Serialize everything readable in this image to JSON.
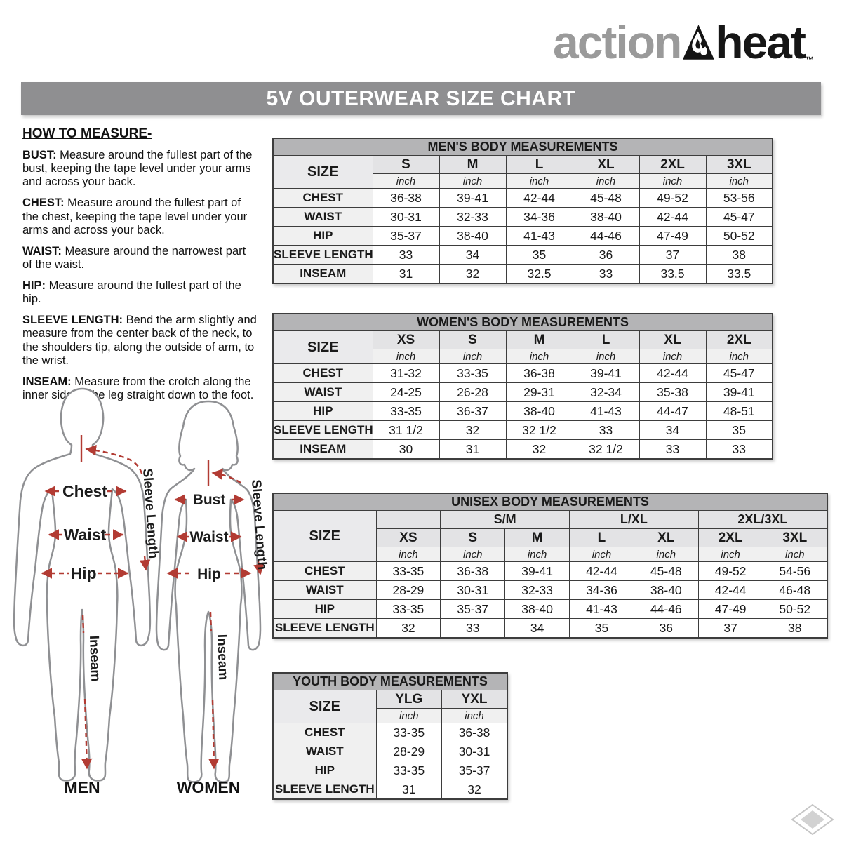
{
  "logo": {
    "word1": "action",
    "word2": "heat",
    "tm": "™"
  },
  "banner": {
    "title": "5V OUTERWEAR SIZE CHART"
  },
  "how_to_measure": {
    "heading": "HOW TO MEASURE-",
    "items": [
      {
        "term": "BUST:",
        "text": "Measure around the fullest part of the bust, keeping the tape level under your arms and across your back."
      },
      {
        "term": "CHEST:",
        "text": "Measure around the fullest part of the chest, keeping the tape level under your arms and across your back."
      },
      {
        "term": "WAIST:",
        "text": "Measure around the narrowest part of the waist."
      },
      {
        "term": "HIP:",
        "text": "Measure around the fullest part of the hip."
      },
      {
        "term": "SLEEVE LENGTH:",
        "text": "Bend the arm slightly and measure from the center back of the neck, to the shoulders tip, along the outside of arm, to the wrist."
      },
      {
        "term": "INSEAM:",
        "text": "Measure from the crotch along the inner side of the leg straight down to the foot."
      }
    ]
  },
  "diagram": {
    "arrow_color": "#b23b33",
    "outline_color": "#8f9093",
    "men": {
      "caption": "MEN",
      "chest": "Chest",
      "waist": "Waist",
      "hip": "Hip",
      "inseam": "Inseam",
      "sleeve": "Sleeve Length"
    },
    "women": {
      "caption": "WOMEN",
      "bust": "Bust",
      "waist": "Waist",
      "hip": "Hip",
      "inseam": "Inseam",
      "sleeve": "Sleeve Length"
    }
  },
  "tables": {
    "mens": {
      "title": "MEN'S BODY MEASUREMENTS",
      "size_label": "SIZE",
      "unit": "inch",
      "sizes": [
        "S",
        "M",
        "L",
        "XL",
        "2XL",
        "3XL"
      ],
      "rows": [
        {
          "label": "CHEST",
          "values": [
            "36-38",
            "39-41",
            "42-44",
            "45-48",
            "49-52",
            "53-56"
          ]
        },
        {
          "label": "WAIST",
          "values": [
            "30-31",
            "32-33",
            "34-36",
            "38-40",
            "42-44",
            "45-47"
          ]
        },
        {
          "label": "HIP",
          "values": [
            "35-37",
            "38-40",
            "41-43",
            "44-46",
            "47-49",
            "50-52"
          ]
        },
        {
          "label": "SLEEVE LENGTH",
          "values": [
            "33",
            "34",
            "35",
            "36",
            "37",
            "38"
          ]
        },
        {
          "label": "INSEAM",
          "values": [
            "31",
            "32",
            "32.5",
            "33",
            "33.5",
            "33.5"
          ]
        }
      ]
    },
    "womens": {
      "title": "WOMEN'S BODY MEASUREMENTS",
      "size_label": "SIZE",
      "unit": "inch",
      "sizes": [
        "XS",
        "S",
        "M",
        "L",
        "XL",
        "2XL"
      ],
      "rows": [
        {
          "label": "CHEST",
          "values": [
            "31-32",
            "33-35",
            "36-38",
            "39-41",
            "42-44",
            "45-47"
          ]
        },
        {
          "label": "WAIST",
          "values": [
            "24-25",
            "26-28",
            "29-31",
            "32-34",
            "35-38",
            "39-41"
          ]
        },
        {
          "label": "HIP",
          "values": [
            "33-35",
            "36-37",
            "38-40",
            "41-43",
            "44-47",
            "48-51"
          ]
        },
        {
          "label": "SLEEVE LENGTH",
          "values": [
            "31 1/2",
            "32",
            "32 1/2",
            "33",
            "34",
            "35"
          ]
        },
        {
          "label": "INSEAM",
          "values": [
            "30",
            "31",
            "32",
            "32 1/2",
            "33",
            "33"
          ]
        }
      ]
    },
    "unisex": {
      "title": "UNISEX BODY MEASUREMENTS",
      "size_label": "SIZE",
      "unit": "inch",
      "groups": [
        {
          "label": "",
          "span": 1
        },
        {
          "label": "S/M",
          "span": 2
        },
        {
          "label": "L/XL",
          "span": 2
        },
        {
          "label": "2XL/3XL",
          "span": 2
        }
      ],
      "sizes": [
        "XS",
        "S",
        "M",
        "L",
        "XL",
        "2XL",
        "3XL"
      ],
      "rows": [
        {
          "label": "CHEST",
          "values": [
            "33-35",
            "36-38",
            "39-41",
            "42-44",
            "45-48",
            "49-52",
            "54-56"
          ]
        },
        {
          "label": "WAIST",
          "values": [
            "28-29",
            "30-31",
            "32-33",
            "34-36",
            "38-40",
            "42-44",
            "46-48"
          ]
        },
        {
          "label": "HIP",
          "values": [
            "33-35",
            "35-37",
            "38-40",
            "41-43",
            "44-46",
            "47-49",
            "50-52"
          ]
        },
        {
          "label": "SLEEVE LENGTH",
          "values": [
            "32",
            "33",
            "34",
            "35",
            "36",
            "37",
            "38"
          ]
        }
      ]
    },
    "youth": {
      "title": "YOUTH BODY MEASUREMENTS",
      "size_label": "SIZE",
      "unit": "inch",
      "sizes": [
        "YLG",
        "YXL"
      ],
      "rows": [
        {
          "label": "CHEST",
          "values": [
            "33-35",
            "36-38"
          ]
        },
        {
          "label": "WAIST",
          "values": [
            "28-29",
            "30-31"
          ]
        },
        {
          "label": "HIP",
          "values": [
            "33-35",
            "35-37"
          ]
        },
        {
          "label": "SLEEVE LENGTH",
          "values": [
            "31",
            "32"
          ]
        }
      ]
    }
  }
}
